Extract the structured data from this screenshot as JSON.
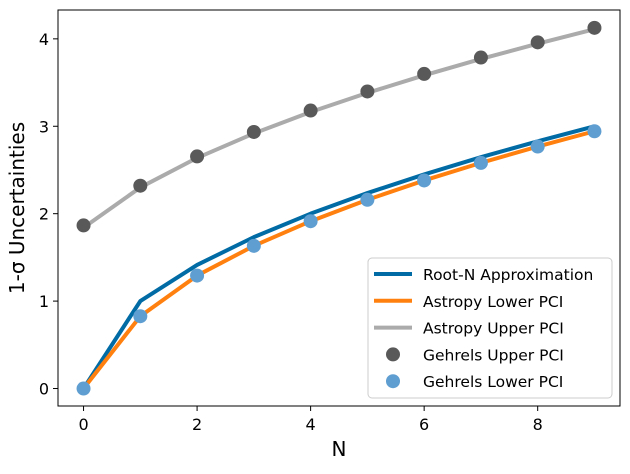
{
  "chart_data": {
    "type": "line",
    "title": "",
    "xlabel": "N",
    "ylabel": "1-σ Uncertainties",
    "xlim": [
      -0.45,
      9.45
    ],
    "ylim": [
      -0.2,
      4.33
    ],
    "xticks": [
      0,
      2,
      4,
      6,
      8
    ],
    "yticks": [
      0,
      1,
      2,
      3,
      4
    ],
    "grid": false,
    "legend_position": "bottom-right",
    "x": [
      0,
      1,
      2,
      3,
      4,
      5,
      6,
      7,
      8,
      9
    ],
    "series": [
      {
        "name": "Root-N Approximation",
        "kind": "line",
        "color": "#006BA4",
        "values": [
          0,
          1,
          1.414,
          1.732,
          2,
          2.236,
          2.449,
          2.646,
          2.828,
          3
        ]
      },
      {
        "name": "Astropy Lower PCI",
        "kind": "line",
        "color": "#FF800E",
        "values": [
          0,
          0.827,
          1.292,
          1.632,
          1.914,
          2.159,
          2.38,
          2.581,
          2.768,
          2.943
        ]
      },
      {
        "name": "Astropy Upper PCI",
        "kind": "line",
        "color": "#ABABAB",
        "values": [
          1.841,
          2.3,
          2.638,
          2.918,
          3.163,
          3.382,
          3.583,
          3.77,
          3.944,
          4.11
        ]
      },
      {
        "name": "Gehrels Upper PCI",
        "kind": "scatter",
        "color": "#595959",
        "values": [
          1.866,
          2.32,
          2.655,
          2.935,
          3.18,
          3.398,
          3.599,
          3.786,
          3.96,
          4.126
        ]
      },
      {
        "name": "Gehrels Lower PCI",
        "kind": "scatter",
        "color": "#5F9ED1",
        "values": [
          0,
          0.827,
          1.292,
          1.632,
          1.914,
          2.159,
          2.38,
          2.581,
          2.768,
          2.943
        ]
      }
    ]
  }
}
